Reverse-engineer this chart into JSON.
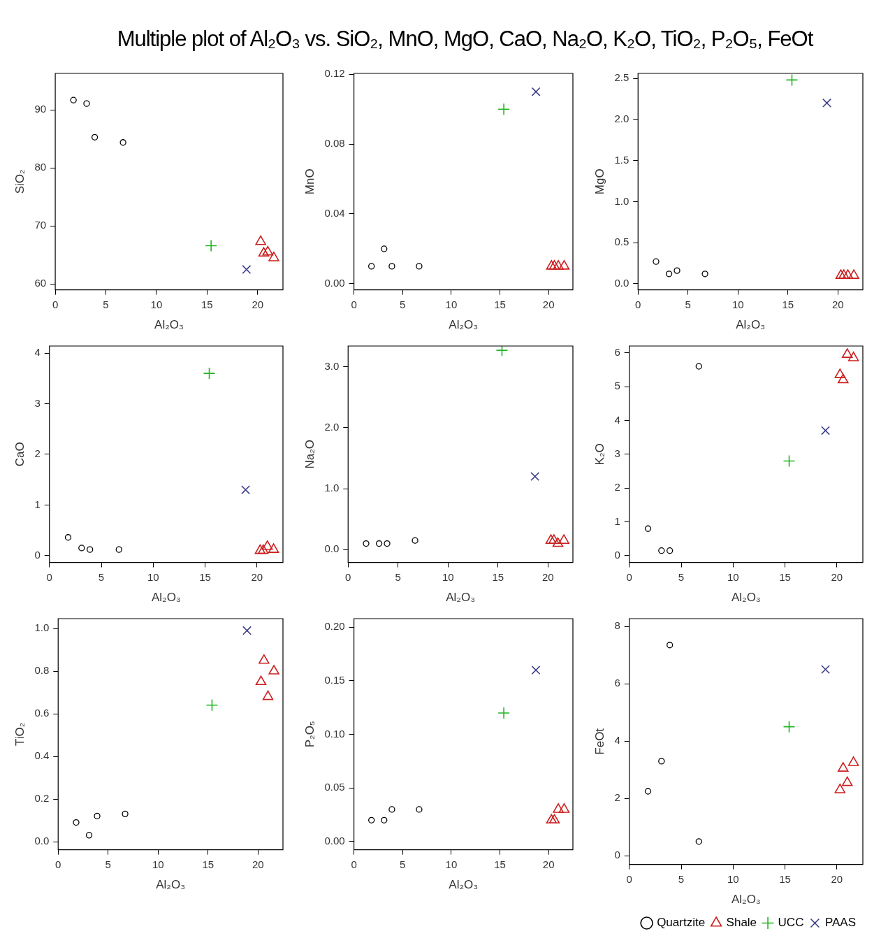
{
  "chart_data": [
    {
      "type": "scatter",
      "title": "Multiple plot of Al₂O₃ vs. SiO₂, MnO, MgO, CaO, Na₂O, K₂O, TiO₂, P₂O₅, FeOt",
      "xlabel": "Al₂O₃",
      "ylabel": "SiO₂",
      "xlim": [
        0,
        22.5
      ],
      "xticks": [
        0,
        5,
        10,
        15,
        20
      ],
      "ylim": [
        59,
        96.3
      ],
      "yticks": [
        60,
        70,
        80,
        90
      ],
      "grid": false,
      "series": [
        {
          "color": "#000000",
          "marker": "circle",
          "x": [
            1.8,
            3.1,
            3.9,
            6.7
          ],
          "values": [
            91.7,
            91.1,
            85.3,
            84.4
          ]
        },
        {
          "color": "#cc1f1f",
          "marker": "triangle",
          "x": [
            20.3,
            20.6,
            21.0,
            21.6
          ],
          "values": [
            67.3,
            65.3,
            65.5,
            64.5
          ]
        },
        {
          "color": "#22b522",
          "marker": "cross",
          "x": [
            15.4
          ],
          "values": [
            66.6
          ]
        },
        {
          "color": "#3c3c8c",
          "marker": "x",
          "x": [
            18.9
          ],
          "values": [
            62.5
          ]
        }
      ]
    },
    {
      "type": "scatter",
      "xlabel": "Al₂O₃",
      "ylabel": "MnO",
      "xlim": [
        0,
        22.5
      ],
      "xticks": [
        0,
        5,
        10,
        15,
        20
      ],
      "ylim": [
        -0.0035,
        0.1205
      ],
      "yticks": [
        {
          "value": 0,
          "label": "0.00"
        },
        {
          "value": 0.04,
          "label": "0.04"
        },
        {
          "value": 0.08,
          "label": "0.08"
        },
        {
          "value": 0.12,
          "label": "0.12"
        }
      ],
      "grid": false,
      "series": [
        {
          "color": "#000000",
          "marker": "circle",
          "x": [
            1.8,
            3.1,
            3.9,
            6.7
          ],
          "values": [
            0.01,
            0.02,
            0.01,
            0.01
          ]
        },
        {
          "color": "#cc1f1f",
          "marker": "triangle",
          "x": [
            20.3,
            20.6,
            21.0,
            21.6
          ],
          "values": [
            0.01,
            0.01,
            0.01,
            0.01
          ]
        },
        {
          "color": "#22b522",
          "marker": "cross",
          "x": [
            15.4
          ],
          "values": [
            0.1
          ]
        },
        {
          "color": "#3c3c8c",
          "marker": "x",
          "x": [
            18.7
          ],
          "values": [
            0.11
          ]
        }
      ]
    },
    {
      "type": "scatter",
      "xlabel": "Al₂O₃",
      "ylabel": "MgO",
      "xlim": [
        0,
        22.5
      ],
      "xticks": [
        0,
        5,
        10,
        15,
        20
      ],
      "ylim": [
        -0.074,
        2.56
      ],
      "yticks": [
        {
          "value": 0,
          "label": "0.0"
        },
        0.5,
        {
          "value": 1,
          "label": "1.0"
        },
        1.5,
        {
          "value": 2,
          "label": "2.0"
        },
        2.5
      ],
      "grid": false,
      "series": [
        {
          "color": "#000000",
          "marker": "circle",
          "x": [
            1.8,
            3.1,
            3.9,
            6.7
          ],
          "values": [
            0.27,
            0.12,
            0.16,
            0.12
          ]
        },
        {
          "color": "#cc1f1f",
          "marker": "triangle",
          "x": [
            20.3,
            20.6,
            21.0,
            21.6
          ],
          "values": [
            0.1,
            0.1,
            0.1,
            0.1
          ]
        },
        {
          "color": "#22b522",
          "marker": "cross",
          "x": [
            15.4
          ],
          "values": [
            2.48
          ]
        },
        {
          "color": "#3c3c8c",
          "marker": "x",
          "x": [
            18.9
          ],
          "values": [
            2.2
          ]
        }
      ]
    },
    {
      "type": "scatter",
      "xlabel": "Al₂O₃",
      "ylabel": "CaO",
      "xlim": [
        0,
        22.5
      ],
      "xticks": [
        0,
        5,
        10,
        15,
        20
      ],
      "ylim": [
        -0.135,
        4.14
      ],
      "yticks": [
        0,
        1,
        2,
        3,
        4
      ],
      "grid": false,
      "series": [
        {
          "color": "#000000",
          "marker": "circle",
          "x": [
            1.8,
            3.1,
            3.9,
            6.7
          ],
          "values": [
            0.36,
            0.15,
            0.12,
            0.12
          ]
        },
        {
          "color": "#cc1f1f",
          "marker": "triangle",
          "x": [
            20.3,
            20.6,
            21.0,
            21.6
          ],
          "values": [
            0.1,
            0.1,
            0.18,
            0.12
          ]
        },
        {
          "color": "#22b522",
          "marker": "cross",
          "x": [
            15.4
          ],
          "values": [
            3.6
          ]
        },
        {
          "color": "#3c3c8c",
          "marker": "x",
          "x": [
            18.9
          ],
          "values": [
            1.3
          ]
        }
      ]
    },
    {
      "type": "scatter",
      "xlabel": "Al₂O₃",
      "ylabel": "Na₂O",
      "xlim": [
        0,
        22.5
      ],
      "xticks": [
        0,
        5,
        10,
        15,
        20
      ],
      "ylim": [
        -0.21,
        3.34
      ],
      "yticks": [
        {
          "value": 0,
          "label": "0.0"
        },
        {
          "value": 1,
          "label": "1.0"
        },
        {
          "value": 2,
          "label": "2.0"
        },
        {
          "value": 3,
          "label": "3.0"
        }
      ],
      "grid": false,
      "series": [
        {
          "color": "#000000",
          "marker": "circle",
          "x": [
            1.8,
            3.1,
            3.9,
            6.7
          ],
          "values": [
            0.1,
            0.1,
            0.1,
            0.15
          ]
        },
        {
          "color": "#cc1f1f",
          "marker": "triangle",
          "x": [
            20.3,
            20.6,
            21.0,
            21.6
          ],
          "values": [
            0.15,
            0.15,
            0.1,
            0.15
          ]
        },
        {
          "color": "#22b522",
          "marker": "cross",
          "x": [
            15.4
          ],
          "values": [
            3.27
          ]
        },
        {
          "color": "#3c3c8c",
          "marker": "x",
          "x": [
            18.7
          ],
          "values": [
            1.2
          ]
        }
      ]
    },
    {
      "type": "scatter",
      "xlabel": "Al₂O₃",
      "ylabel": "K₂O",
      "xlim": [
        0,
        22.5
      ],
      "xticks": [
        0,
        5,
        10,
        15,
        20
      ],
      "ylim": [
        -0.2,
        6.2
      ],
      "yticks": [
        0,
        1,
        2,
        3,
        4,
        5,
        6
      ],
      "grid": false,
      "series": [
        {
          "color": "#000000",
          "marker": "circle",
          "x": [
            1.8,
            3.1,
            3.9,
            6.7
          ],
          "values": [
            0.8,
            0.15,
            0.15,
            5.6
          ]
        },
        {
          "color": "#cc1f1f",
          "marker": "triangle",
          "x": [
            20.3,
            20.6,
            21.0,
            21.6
          ],
          "values": [
            5.35,
            5.2,
            5.95,
            5.85
          ]
        },
        {
          "color": "#22b522",
          "marker": "cross",
          "x": [
            15.4
          ],
          "values": [
            2.8
          ]
        },
        {
          "color": "#3c3c8c",
          "marker": "x",
          "x": [
            18.9
          ],
          "values": [
            3.7
          ]
        }
      ]
    },
    {
      "type": "scatter",
      "xlabel": "Al₂O₃",
      "ylabel": "TiO₂",
      "xlim": [
        0,
        22.5
      ],
      "xticks": [
        0,
        5,
        10,
        15,
        20
      ],
      "ylim": [
        -0.038,
        1.046
      ],
      "yticks": [
        {
          "value": 0,
          "label": "0.0"
        },
        0.2,
        0.4,
        0.6,
        0.8,
        {
          "value": 1,
          "label": "1.0"
        }
      ],
      "grid": false,
      "series": [
        {
          "color": "#000000",
          "marker": "circle",
          "x": [
            1.8,
            3.1,
            3.9,
            6.7
          ],
          "values": [
            0.09,
            0.03,
            0.12,
            0.13
          ]
        },
        {
          "color": "#cc1f1f",
          "marker": "triangle",
          "x": [
            20.3,
            20.6,
            21.0,
            21.6
          ],
          "values": [
            0.75,
            0.85,
            0.68,
            0.8
          ]
        },
        {
          "color": "#22b522",
          "marker": "cross",
          "x": [
            15.4
          ],
          "values": [
            0.64
          ]
        },
        {
          "color": "#3c3c8c",
          "marker": "x",
          "x": [
            18.9
          ],
          "values": [
            0.99
          ]
        }
      ]
    },
    {
      "type": "scatter",
      "xlabel": "Al₂O₃",
      "ylabel": "P₂O₅",
      "xlim": [
        0,
        22.5
      ],
      "xticks": [
        0,
        5,
        10,
        15,
        20
      ],
      "ylim": [
        -0.0076,
        0.208
      ],
      "yticks": [
        {
          "value": 0,
          "label": "0.00"
        },
        0.05,
        {
          "value": 0.1,
          "label": "0.10"
        },
        0.15,
        {
          "value": 0.2,
          "label": "0.20"
        }
      ],
      "grid": false,
      "series": [
        {
          "color": "#000000",
          "marker": "circle",
          "x": [
            1.8,
            3.1,
            3.9,
            6.7
          ],
          "values": [
            0.02,
            0.02,
            0.03,
            0.03
          ]
        },
        {
          "color": "#cc1f1f",
          "marker": "triangle",
          "x": [
            20.3,
            20.6,
            21.0,
            21.6
          ],
          "values": [
            0.02,
            0.02,
            0.03,
            0.03
          ]
        },
        {
          "color": "#22b522",
          "marker": "cross",
          "x": [
            15.4
          ],
          "values": [
            0.12
          ]
        },
        {
          "color": "#3c3c8c",
          "marker": "x",
          "x": [
            18.7
          ],
          "values": [
            0.16
          ]
        }
      ]
    },
    {
      "type": "scatter",
      "xlabel": "Al₂O₃",
      "ylabel": "FeOt",
      "xlim": [
        0,
        22.5
      ],
      "xticks": [
        0,
        5,
        10,
        15,
        20
      ],
      "ylim": [
        -0.3,
        8.27
      ],
      "yticks": [
        0,
        2,
        4,
        6,
        8
      ],
      "grid": false,
      "legend": "bottom",
      "series": [
        {
          "name": "Quartzite",
          "color": "#000000",
          "marker": "circle",
          "x": [
            1.8,
            3.1,
            3.9,
            6.7
          ],
          "values": [
            2.25,
            3.3,
            7.35,
            0.5
          ]
        },
        {
          "name": "Shale",
          "color": "#cc1f1f",
          "marker": "triangle",
          "x": [
            20.3,
            20.6,
            21.0,
            21.6
          ],
          "values": [
            2.3,
            3.05,
            2.55,
            3.25
          ]
        },
        {
          "name": "UCC",
          "color": "#22b522",
          "marker": "cross",
          "x": [
            15.4
          ],
          "values": [
            4.5
          ]
        },
        {
          "name": "PAAS",
          "color": "#3c3c8c",
          "marker": "x",
          "x": [
            18.9
          ],
          "values": [
            6.5
          ]
        }
      ]
    }
  ]
}
